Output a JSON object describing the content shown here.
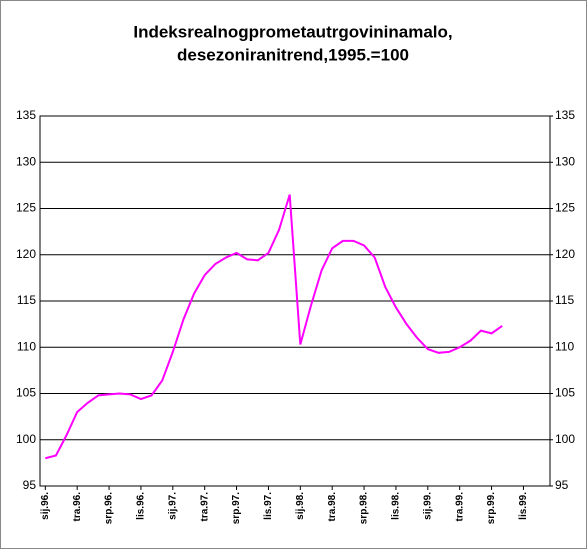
{
  "chart_data": {
    "type": "line",
    "title": [
      "Indeksrealnogprometautrgovininamalo,",
      "desezoniranitrend,1995.=100"
    ],
    "categories": [
      "sij.96.",
      null,
      null,
      "tra.96.",
      null,
      null,
      "srp.96.",
      null,
      null,
      "lis.96.",
      null,
      null,
      "sij.97.",
      null,
      null,
      "tra.97.",
      null,
      null,
      "srp.97.",
      null,
      null,
      "lis.97.",
      null,
      null,
      "sij.98.",
      null,
      null,
      "tra.98.",
      null,
      null,
      "srp.98.",
      null,
      null,
      "lis.98.",
      null,
      null,
      "sij.99.",
      null,
      null,
      "tra.99.",
      null,
      null,
      "srp.99.",
      null,
      null,
      "lis.99.",
      null,
      null
    ],
    "series": [
      {
        "name": null,
        "color": "#ff00ff",
        "values": [
          98,
          98.3,
          100.5,
          103,
          104,
          104.8,
          104.9,
          105,
          104.9,
          104.4,
          104.8,
          106.4,
          109.5,
          113,
          115.8,
          117.8,
          119,
          119.7,
          120.2,
          119.5,
          119.4,
          120.2,
          122.7,
          126.5,
          110.3,
          114.5,
          118.3,
          120.7,
          121.5,
          121.5,
          121,
          119.7,
          116.5,
          114.3,
          112.5,
          111,
          109.8,
          109.4,
          109.5,
          110,
          110.7,
          111.8,
          111.5,
          112.3,
          null,
          null,
          null,
          null
        ]
      }
    ],
    "ylim": [
      95,
      135
    ],
    "yticks": [
      95,
      100,
      105,
      110,
      115,
      120,
      125,
      130,
      135
    ],
    "y2lim": [
      95,
      135
    ],
    "y2ticks": [
      95,
      100,
      105,
      110,
      115,
      120,
      125,
      130,
      135
    ],
    "grid": true
  }
}
